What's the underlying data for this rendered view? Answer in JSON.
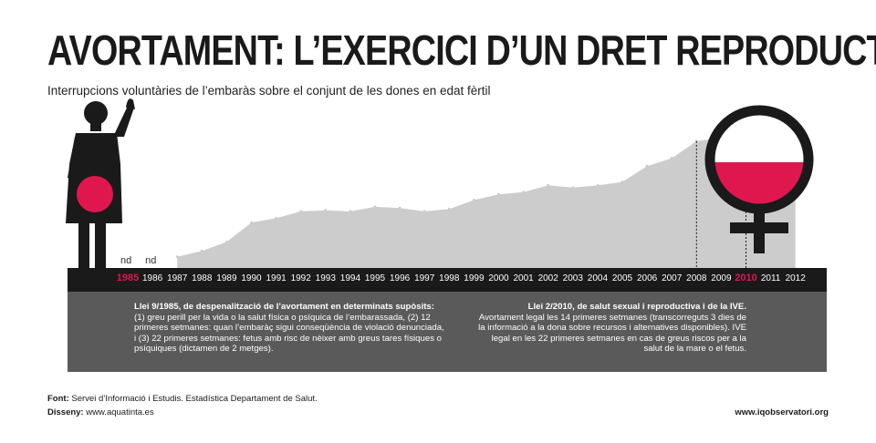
{
  "title": "AVORTAMENT: L’EXERCICI D’UN DRET REPRODUCTIU",
  "subtitle": "Interrupcions voluntàries de l’embaràs sobre el conjunt de les dones en edat fèrtil",
  "colors": {
    "dark": "#1a1a1a",
    "accent": "#e0174f",
    "area": "#cccccc",
    "panel": "#5a5a5a"
  },
  "icons": {
    "left": "woman-figure-icon",
    "right": "female-symbol-icon"
  },
  "chart_data": {
    "type": "area",
    "categories": [
      "1985",
      "1986",
      "1987",
      "1988",
      "1989",
      "1990",
      "1991",
      "1992",
      "1993",
      "1994",
      "1995",
      "1996",
      "1997",
      "1998",
      "1999",
      "2000",
      "2001",
      "2002",
      "2003",
      "2004",
      "2005",
      "2006",
      "2007",
      "2008",
      "2009",
      "2010",
      "2011",
      "2012"
    ],
    "values": [
      null,
      null,
      1.0,
      1.5,
      2.3,
      4.0,
      4.4,
      5.0,
      5.1,
      5.0,
      5.4,
      5.3,
      5.0,
      5.2,
      6.0,
      6.5,
      6.7,
      7.3,
      7.1,
      7.3,
      7.6,
      9.0,
      9.7,
      11.2,
      11.5,
      11.4,
      11.0,
      10.7
    ],
    "missing_label": "nd",
    "highlight_years": [
      "1985",
      "2010"
    ],
    "ylim": [
      0,
      12
    ],
    "grid": false
  },
  "laws": [
    {
      "heading": "Llei 9/1985, de despenalització de l’avortament en determinats supòsits:",
      "body": "(1) greu perill per la vida o la salut física o psíquica de l’embarassada, (2) 12 primeres setmanes: quan l’embaràç sigui conseqüència de violació denunciada, i (3) 22 primeres setmanes: fetus amb risc de nèixer amb greus tares físiques o psíquiques (dictamen de 2 metges)."
    },
    {
      "heading": "Llei 2/2010, de salut sexual i reproductiva i de la IVE.",
      "body": "Avortament legal les 14 primeres setmanes (transcorreguts 3 dies de la informació a la dona sobre recursos i alternatives disponibles). IVE legal en les 22 primeres setmanes en cas de greus riscos per a la salut de la mare o el fetus."
    }
  ],
  "footer": {
    "source_label": "Font:",
    "source_text": "Servei d’Informació i Estudis. Estadística Departament de Salut.",
    "design_label": "Disseny:",
    "design_text": "www.aquatinta.es",
    "site": "www.iqobservatori.org"
  }
}
